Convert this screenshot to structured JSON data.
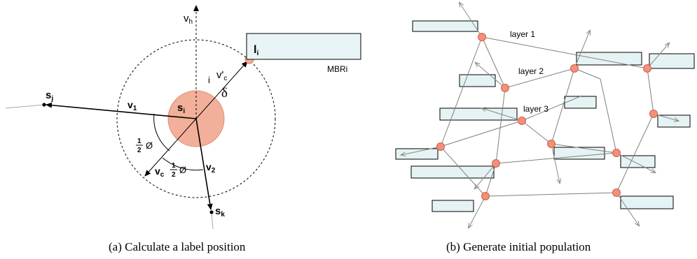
{
  "panel_a": {
    "caption": "(a)  Calculate a label position",
    "labels": {
      "vh": "v",
      "vh_sub": "h",
      "sj": "s",
      "sj_sub": "j",
      "sk": "s",
      "sk_sub": "k",
      "si": "s",
      "si_sub": "i",
      "li": "l",
      "li_sub": "i",
      "i": "i",
      "vc_prime": "v'",
      "vc_prime_sub": "c",
      "delta": "δ",
      "v1": "v",
      "v1_sub": "1",
      "v2": "v",
      "v2_sub": "2",
      "vc": "v",
      "vc_sub": "c",
      "half": "1",
      "half_den": "2",
      "phi": "Ø",
      "mbr": "MBRi"
    },
    "colors": {
      "node_fill": "#f2b09a",
      "node_stroke": "#d9725a",
      "box_fill": "#e8f4f6"
    }
  },
  "panel_b": {
    "caption": "(b)  Generate initial population",
    "layer_labels": [
      "layer 1",
      "layer 2",
      "layer 3"
    ],
    "colors": {
      "node_fill": "#f2907a",
      "node_stroke": "#d0604a",
      "box_fill": "#e6f3f5",
      "edge": "#808080"
    }
  }
}
